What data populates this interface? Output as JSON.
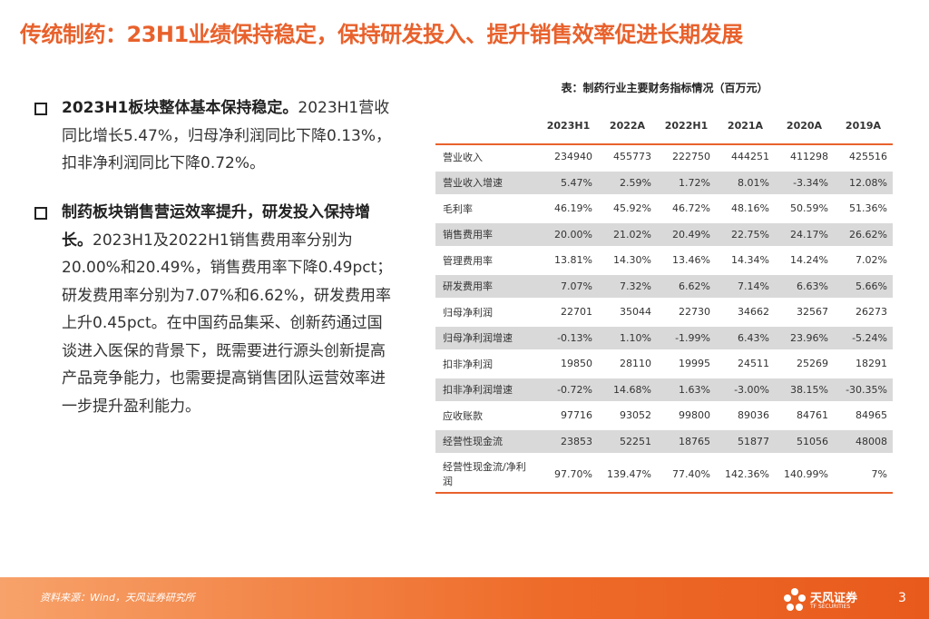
{
  "title": "传统制药：23H1业绩保持稳定，保持研发投入、提升销售效率促进长期发展",
  "bullets": [
    {
      "bold": "2023H1板块整体基本保持稳定。",
      "text": "2023H1营收同比增长5.47%，归母净利润同比下降0.13%，扣非净利润同比下降0.72%。"
    },
    {
      "bold": "制药板块销售营运效率提升，研发投入保持增长。",
      "text": "2023H1及2022H1销售费用率分别为20.00%和20.49%，销售费用率下降0.49pct；研发费用率分别为7.07%和6.62%，研发费用率上升0.45pct。在中国药品集采、创新药通过国谈进入医保的背景下，既需要进行源头创新提高产品竞争能力，也需要提高销售团队运营效率进一步提升盈利能力。"
    }
  ],
  "table": {
    "caption": "表：制药行业主要财务指标情况（百万元）",
    "header": [
      "2023H1",
      "2022A",
      "2022H1",
      "2021A",
      "2020A",
      "2019A"
    ],
    "rows": [
      [
        "营业收入",
        "234940",
        "455773",
        "222750",
        "444251",
        "411298",
        "425516"
      ],
      [
        "营业收入增速",
        "5.47%",
        "2.59%",
        "1.72%",
        "8.01%",
        "-3.34%",
        "12.08%"
      ],
      [
        "毛利率",
        "46.19%",
        "45.92%",
        "46.72%",
        "48.16%",
        "50.59%",
        "51.36%"
      ],
      [
        "销售费用率",
        "20.00%",
        "21.02%",
        "20.49%",
        "22.75%",
        "24.17%",
        "26.62%"
      ],
      [
        "管理费用率",
        "13.81%",
        "14.30%",
        "13.46%",
        "14.34%",
        "14.24%",
        "7.02%"
      ],
      [
        "研发费用率",
        "7.07%",
        "7.32%",
        "6.62%",
        "7.14%",
        "6.63%",
        "5.66%"
      ],
      [
        "归母净利润",
        "22701",
        "35044",
        "22730",
        "34662",
        "32567",
        "26273"
      ],
      [
        "归母净利润增速",
        "-0.13%",
        "1.10%",
        "-1.99%",
        "6.43%",
        "23.96%",
        "-5.24%"
      ],
      [
        "扣非净利润",
        "19850",
        "28110",
        "19995",
        "24511",
        "25269",
        "18291"
      ],
      [
        "扣非净利润增速",
        "-0.72%",
        "14.68%",
        "1.63%",
        "-3.00%",
        "38.15%",
        "-30.35%"
      ],
      [
        "应收账款",
        "97716",
        "93052",
        "99800",
        "89036",
        "84761",
        "84965"
      ],
      [
        "经营性现金流",
        "23853",
        "52251",
        "18765",
        "51877",
        "51056",
        "48008"
      ],
      [
        "经营性现金流/净利润",
        "97.70%",
        "139.47%",
        "77.40%",
        "142.36%",
        "140.99%",
        "7%"
      ]
    ]
  },
  "footer": {
    "source": "资料来源：Wind，天风证券研究所",
    "logo": "天风证券",
    "logo_en": "TF SECURITIES",
    "page": "3"
  }
}
